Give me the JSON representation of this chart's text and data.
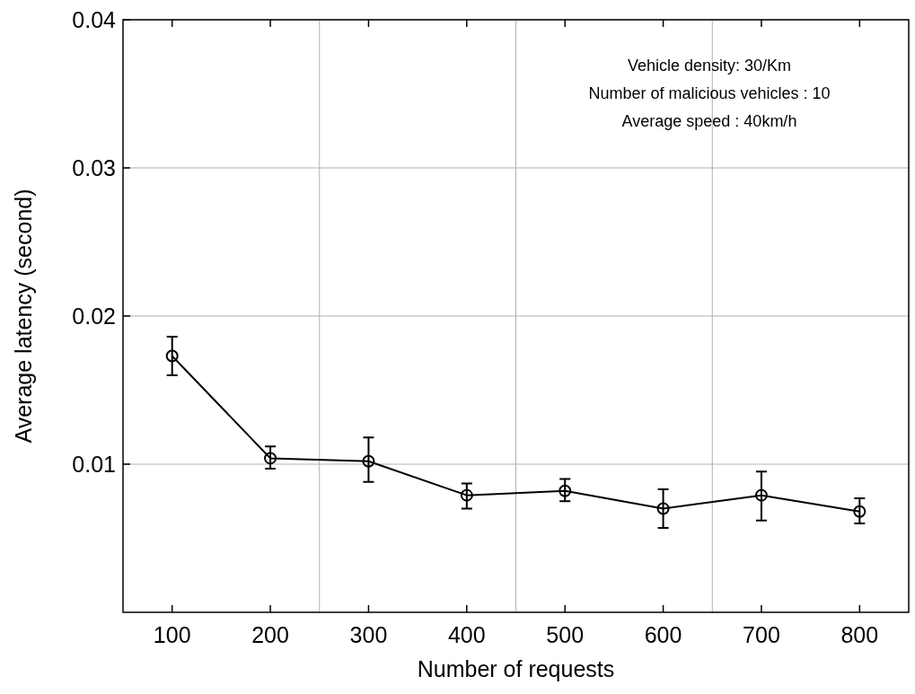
{
  "chart_data": {
    "type": "line",
    "xlabel": "Number of requests",
    "ylabel": "Average latency (second)",
    "x": [
      100,
      200,
      300,
      400,
      500,
      600,
      700,
      800
    ],
    "series": [
      {
        "color": "#000000",
        "values": [
          0.0173,
          0.0104,
          0.0102,
          0.0079,
          0.0082,
          0.007,
          0.0079,
          0.0068
        ],
        "errors": [
          [
            0.016,
            0.0186
          ],
          [
            0.0097,
            0.0112
          ],
          [
            0.0088,
            0.0118
          ],
          [
            0.007,
            0.0087
          ],
          [
            0.0075,
            0.009
          ],
          [
            0.0057,
            0.0083
          ],
          [
            0.0062,
            0.0095
          ],
          [
            0.006,
            0.0077
          ]
        ]
      }
    ],
    "xlim": [
      50,
      850
    ],
    "xticks": [
      100,
      200,
      300,
      400,
      500,
      600,
      700,
      800
    ],
    "ylim": [
      0,
      0.04
    ],
    "yticks": [
      0.01,
      0.02,
      0.03,
      0.04
    ],
    "grid": "y",
    "marker": "circle",
    "line_style": "solid",
    "ref_lines": [
      {
        "axis": "x",
        "value": 250,
        "color": "#b0b0b0"
      },
      {
        "axis": "x",
        "value": 450,
        "color": "#b0b0b0"
      },
      {
        "axis": "x",
        "value": 650,
        "color": "#b0b0b0"
      }
    ],
    "annotations": [
      "Vehicle density: 30/Km",
      "Number of malicious vehicles : 10",
      "Average speed : 40km/h"
    ]
  }
}
